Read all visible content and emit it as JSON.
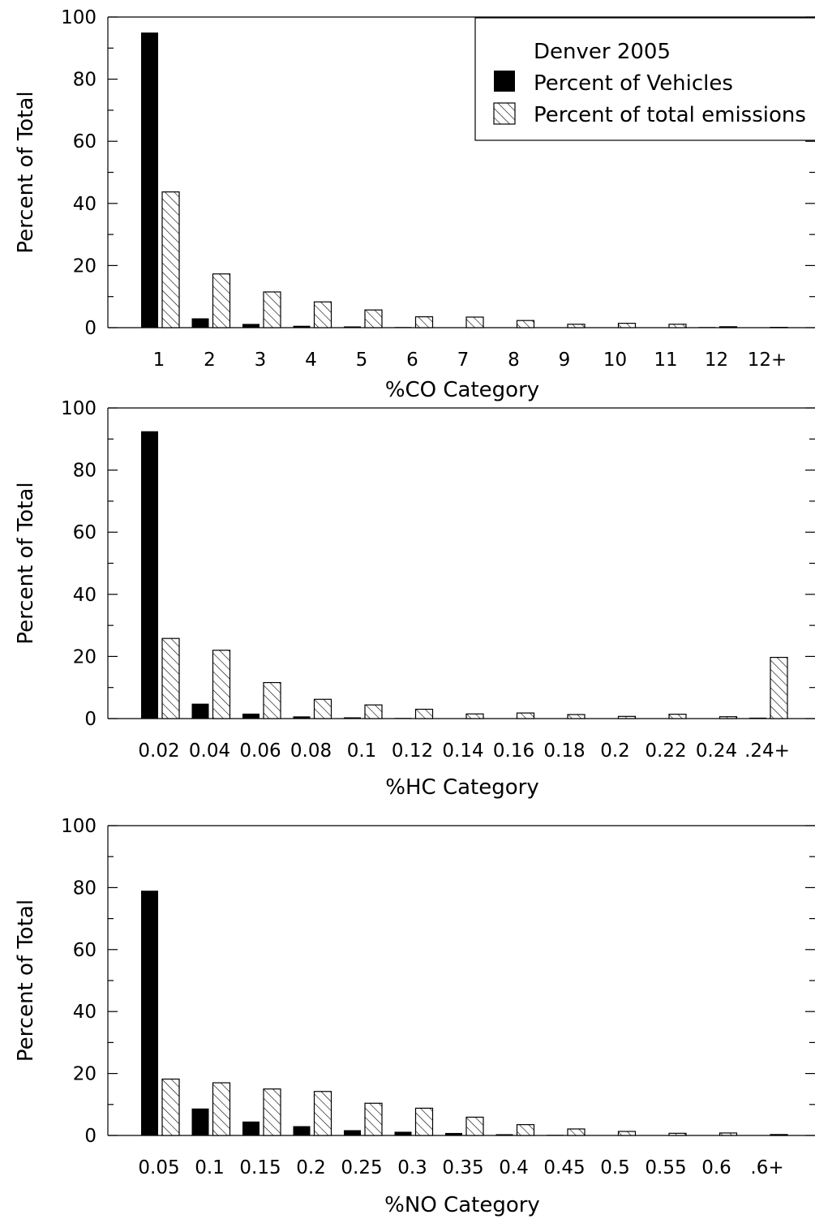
{
  "chart_data": [
    {
      "type": "bar",
      "title": "",
      "xlabel": "%CO Category",
      "ylabel": "Percent of Total",
      "ylim": [
        0,
        100
      ],
      "yticks": [
        "0",
        "20",
        "40",
        "60",
        "80",
        "100"
      ],
      "grid": false,
      "categories": [
        "1",
        "2",
        "3",
        "4",
        "5",
        "6",
        "7",
        "8",
        "9",
        "10",
        "11",
        "12",
        "12+"
      ],
      "series": [
        {
          "name": "Percent of Vehicles",
          "style": "solid",
          "values": [
            95,
            3,
            1.2,
            0.6,
            0.4,
            0.2,
            0.1,
            0.1,
            0.1,
            0.1,
            0.1,
            0.2,
            0.1
          ]
        },
        {
          "name": "Percent of total emissions",
          "style": "hatched",
          "values": [
            43.7,
            17.3,
            11.5,
            8.3,
            5.7,
            3.5,
            3.4,
            2.3,
            1.1,
            1.4,
            1.1,
            0.3,
            0.1
          ]
        }
      ],
      "legend": {
        "title": "Denver 2005",
        "placement": "top-right"
      }
    },
    {
      "type": "bar",
      "title": "",
      "xlabel": "%HC Category",
      "ylabel": "Percent of Total",
      "ylim": [
        0,
        100
      ],
      "yticks": [
        "0",
        "20",
        "40",
        "60",
        "80",
        "100"
      ],
      "grid": false,
      "categories": [
        "0.02",
        "0.04",
        "0.06",
        "0.08",
        "0.1",
        "0.12",
        "0.14",
        "0.16",
        "0.18",
        "0.2",
        "0.22",
        "0.24",
        ".24+"
      ],
      "series": [
        {
          "name": "Percent of Vehicles",
          "style": "solid",
          "values": [
            92.5,
            4.8,
            1.6,
            0.7,
            0.4,
            0.2,
            0.1,
            0.1,
            0.1,
            0.1,
            0.1,
            0.1,
            0.3
          ]
        },
        {
          "name": "Percent of total emissions",
          "style": "hatched",
          "values": [
            25.8,
            22,
            11.6,
            6.2,
            4.4,
            3,
            1.5,
            1.8,
            1.3,
            0.7,
            1.4,
            0.6,
            19.7
          ]
        }
      ]
    },
    {
      "type": "bar",
      "title": "",
      "xlabel": "%NO Category",
      "ylabel": "Percent of Total",
      "ylim": [
        0,
        100
      ],
      "yticks": [
        "0",
        "20",
        "40",
        "60",
        "80",
        "100"
      ],
      "grid": false,
      "categories": [
        "0.05",
        "0.1",
        "0.15",
        "0.2",
        "0.25",
        "0.3",
        "0.35",
        "0.4",
        "0.45",
        "0.5",
        "0.55",
        "0.6",
        ".6+"
      ],
      "series": [
        {
          "name": "Percent of Vehicles",
          "style": "solid",
          "values": [
            79,
            8.7,
            4.5,
            3,
            1.7,
            1.2,
            0.8,
            0.4,
            0.2,
            0.1,
            0.1,
            0.1,
            0.1
          ]
        },
        {
          "name": "Percent of total emissions",
          "style": "hatched",
          "values": [
            18.2,
            17,
            15,
            14.2,
            10.4,
            8.8,
            5.9,
            3.5,
            2.1,
            1.3,
            0.7,
            0.8,
            0.3
          ]
        }
      ]
    }
  ],
  "colors": {
    "vehicles_fill": "#000000",
    "emissions_fill": "#ffffff",
    "hatch": "#000000",
    "axis": "#000000"
  }
}
